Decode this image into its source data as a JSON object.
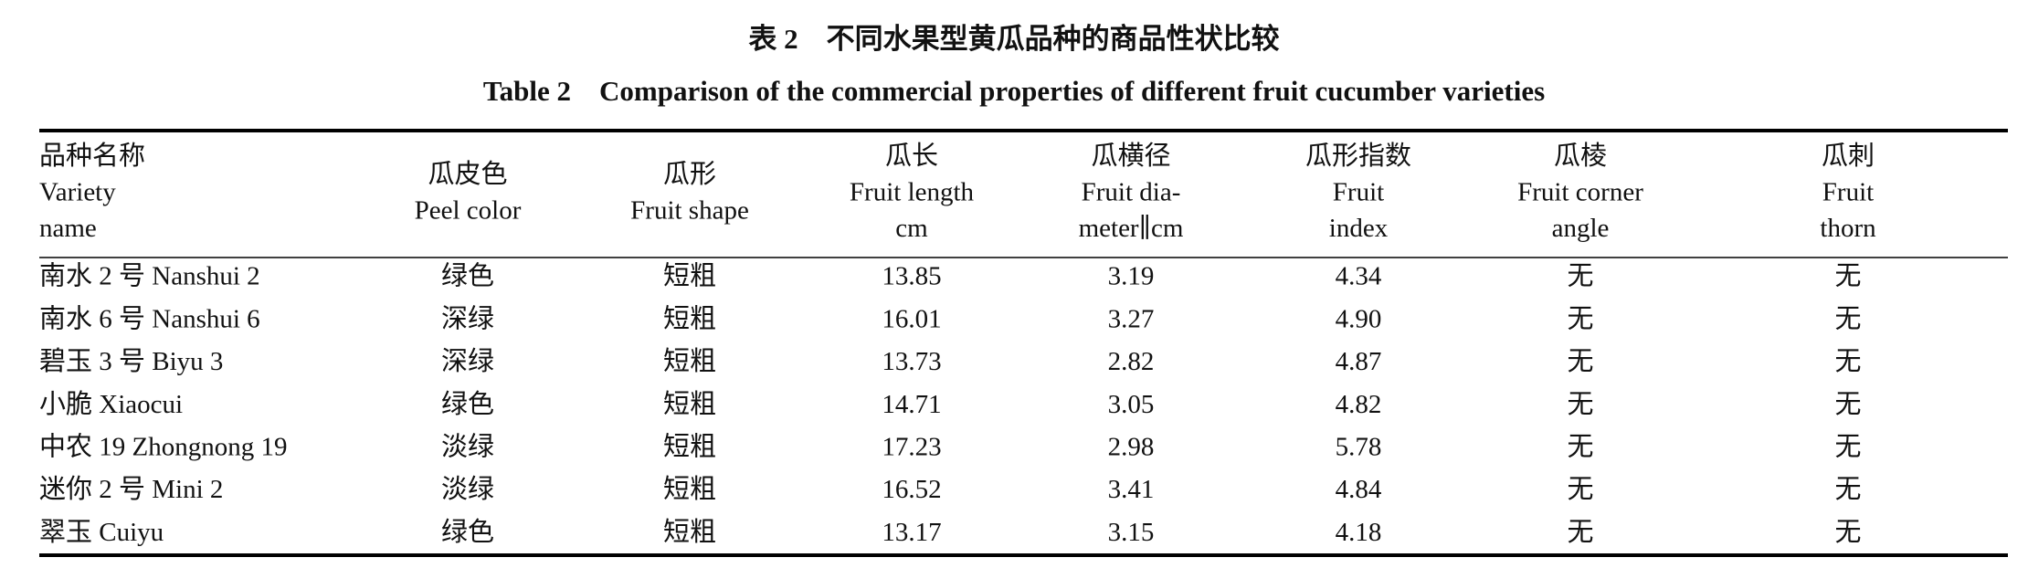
{
  "title_cn": "表 2　不同水果型黄瓜品种的商品性状比较",
  "title_en": "Table 2　Comparison of the commercial properties of different fruit cucumber varieties",
  "table": {
    "headers": [
      [
        "品种名称",
        "Variety",
        "name"
      ],
      [
        "瓜皮色",
        "Peel color"
      ],
      [
        "瓜形",
        "Fruit shape"
      ],
      [
        "瓜长",
        "Fruit length",
        "cm"
      ],
      [
        "瓜横径",
        "Fruit dia-",
        "meter∥cm"
      ],
      [
        "瓜形指数",
        "Fruit",
        "index"
      ],
      [
        "瓜棱",
        "Fruit corner",
        "angle"
      ],
      [
        "瓜刺",
        "Fruit",
        "thorn"
      ]
    ],
    "rows": [
      [
        "南水 2 号 Nanshui 2",
        "绿色",
        "短粗",
        "13.85",
        "3.19",
        "4.34",
        "无",
        "无"
      ],
      [
        "南水 6 号 Nanshui 6",
        "深绿",
        "短粗",
        "16.01",
        "3.27",
        "4.90",
        "无",
        "无"
      ],
      [
        "碧玉 3 号 Biyu 3",
        "深绿",
        "短粗",
        "13.73",
        "2.82",
        "4.87",
        "无",
        "无"
      ],
      [
        "小脆 Xiaocui",
        "绿色",
        "短粗",
        "14.71",
        "3.05",
        "4.82",
        "无",
        "无"
      ],
      [
        "中农 19 Zhongnong 19",
        "淡绿",
        "短粗",
        "17.23",
        "2.98",
        "5.78",
        "无",
        "无"
      ],
      [
        "迷你 2 号 Mini 2",
        "淡绿",
        "短粗",
        "16.52",
        "3.41",
        "4.84",
        "无",
        "无"
      ],
      [
        "翠玉 Cuiyu",
        "绿色",
        "短粗",
        "13.17",
        "3.15",
        "4.18",
        "无",
        "无"
      ]
    ]
  }
}
